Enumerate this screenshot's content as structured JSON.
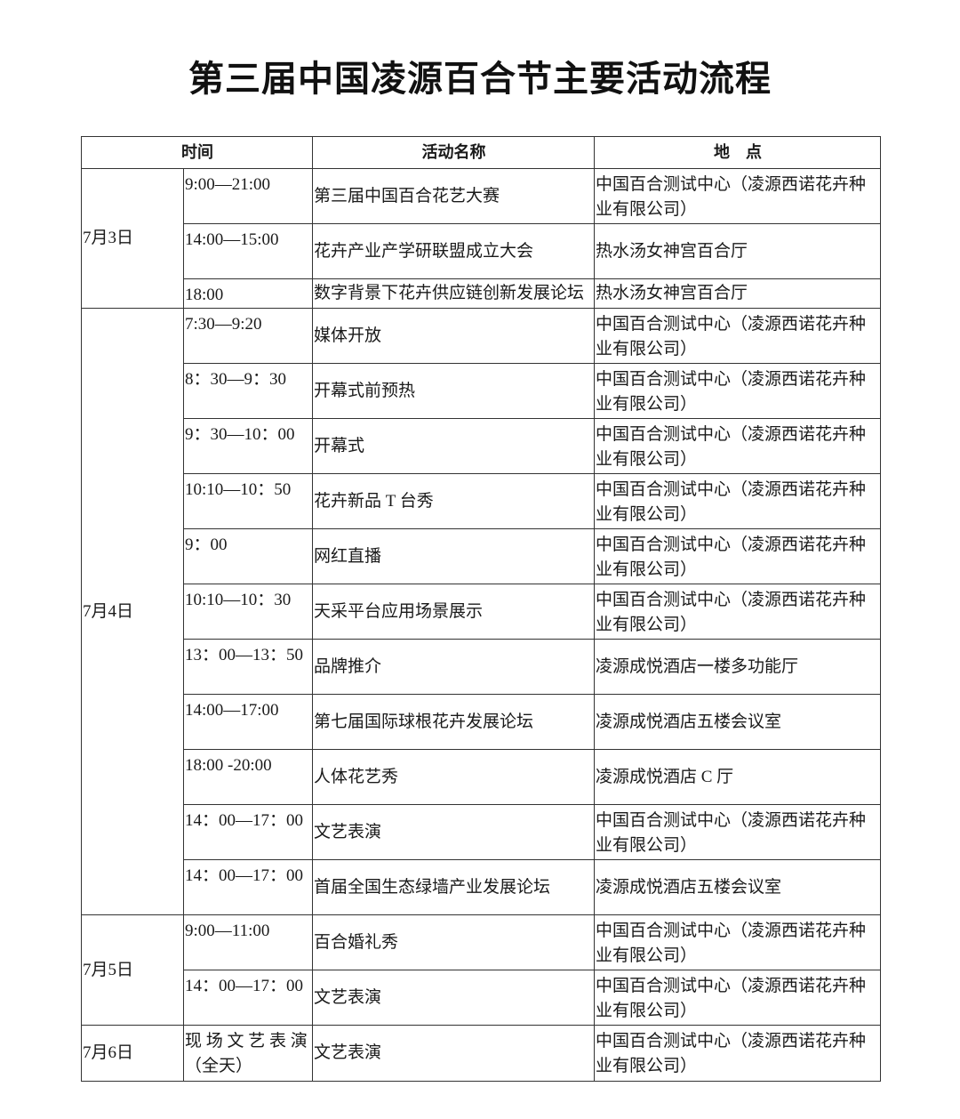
{
  "title": "第三届中国凌源百合节主要活动流程",
  "table": {
    "headers": {
      "time": "时间",
      "activity": "活动名称",
      "location": "地　点"
    },
    "days": [
      {
        "date": "7月3日",
        "rows": [
          {
            "time": "9:00—21:00",
            "activity": "第三届中国百合花艺大赛",
            "location": "中国百合测试中心（凌源西诺花卉种业有限公司）"
          },
          {
            "time": "14:00—15:00",
            "activity": "花卉产业产学研联盟成立大会",
            "location": "热水汤女神宫百合厅"
          },
          {
            "time": "18:00",
            "activity": "数字背景下花卉供应链创新发展论坛",
            "location": "热水汤女神宫百合厅"
          }
        ]
      },
      {
        "date": "7月4日",
        "rows": [
          {
            "time": "7:30—9:20",
            "activity": "媒体开放",
            "location": "中国百合测试中心（凌源西诺花卉种业有限公司）"
          },
          {
            "time": "8：30—9：30",
            "activity": "开幕式前预热",
            "location": "中国百合测试中心（凌源西诺花卉种业有限公司）"
          },
          {
            "time": "9：30—10：00",
            "activity": "开幕式",
            "location": "中国百合测试中心（凌源西诺花卉种业有限公司）"
          },
          {
            "time": "10:10—10：50",
            "activity": "花卉新品 T 台秀",
            "location": "中国百合测试中心（凌源西诺花卉种业有限公司）"
          },
          {
            "time": "9：00",
            "activity": "网红直播",
            "location": "中国百合测试中心（凌源西诺花卉种业有限公司）"
          },
          {
            "time": "10:10—10：30",
            "activity": "天采平台应用场景展示",
            "location": "中国百合测试中心（凌源西诺花卉种业有限公司）"
          },
          {
            "time": "13：00—13：50",
            "activity": "品牌推介",
            "location": "凌源成悦酒店一楼多功能厅"
          },
          {
            "time": "14:00—17:00",
            "activity": "第七届国际球根花卉发展论坛",
            "location": "凌源成悦酒店五楼会议室"
          },
          {
            "time": "18:00 -20:00",
            "activity": "人体花艺秀",
            "location": "凌源成悦酒店 C 厅"
          },
          {
            "time": "14：00—17：00",
            "activity": "文艺表演",
            "location": "中国百合测试中心（凌源西诺花卉种业有限公司）"
          },
          {
            "time": "14：00—17：00",
            "activity": "首届全国生态绿墙产业发展论坛",
            "location": "凌源成悦酒店五楼会议室"
          }
        ]
      },
      {
        "date": "7月5日",
        "rows": [
          {
            "time": "9:00—11:00",
            "activity": "百合婚礼秀",
            "location": "中国百合测试中心（凌源西诺花卉种业有限公司）"
          },
          {
            "time": "14：00—17：00",
            "activity": "文艺表演",
            "location": "中国百合测试中心（凌源西诺花卉种业有限公司）"
          }
        ]
      },
      {
        "date": "7月6日",
        "rows": [
          {
            "time": "现 场 文 艺 表 演 （全天）",
            "activity": "文艺表演",
            "location": "中国百合测试中心（凌源西诺花卉种业有限公司）"
          }
        ]
      }
    ]
  }
}
